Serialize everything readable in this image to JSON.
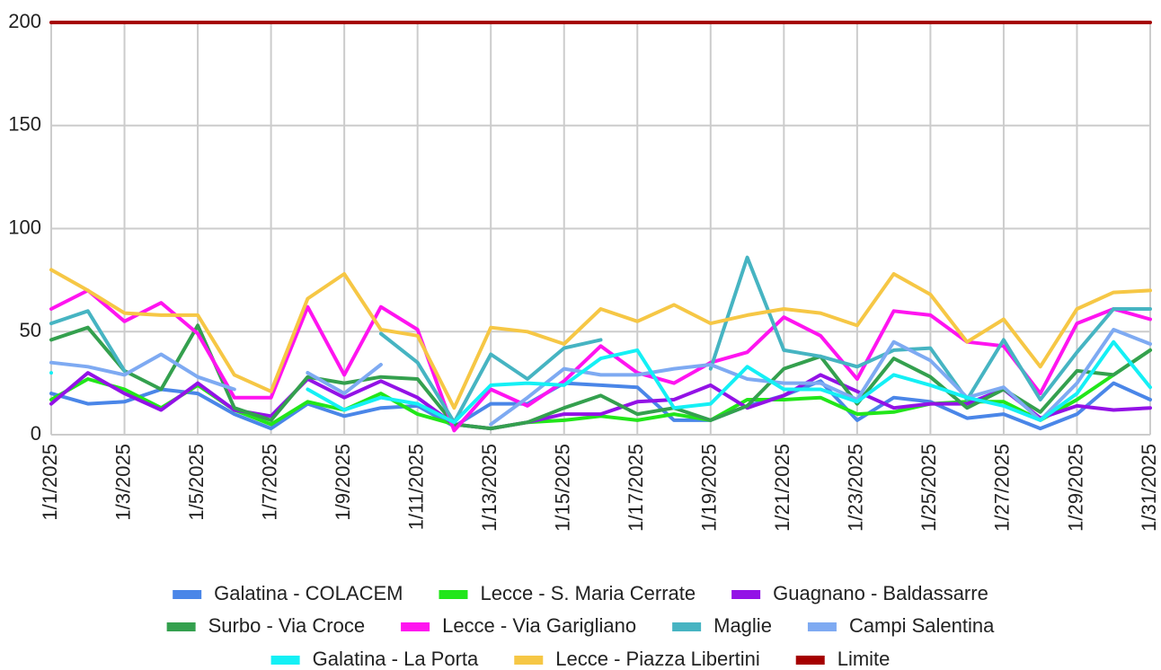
{
  "chart_data": {
    "type": "line",
    "categories": [
      "1/1/2025",
      null,
      "1/3/2025",
      null,
      "1/5/2025",
      null,
      "1/7/2025",
      null,
      "1/9/2025",
      null,
      "1/11/2025",
      null,
      "1/13/2025",
      null,
      "1/15/2025",
      null,
      "1/17/2025",
      null,
      "1/19/2025",
      null,
      "1/21/2025",
      null,
      "1/23/2025",
      null,
      "1/25/2025",
      null,
      "1/27/2025",
      null,
      "1/29/2025",
      null,
      "1/31/2025"
    ],
    "series": [
      {
        "name": "Galatina - COLACEM",
        "color": "#4a86e8",
        "values": [
          20,
          15,
          16,
          22,
          20,
          10,
          3,
          15,
          9,
          13,
          14,
          4,
          15,
          15,
          25,
          24,
          23,
          7,
          7,
          14,
          19,
          26,
          7,
          18,
          16,
          8,
          10,
          3,
          10,
          25,
          17
        ]
      },
      {
        "name": "Lecce - S. Maria Cerrate",
        "color": "#22e61a",
        "values": [
          17,
          27,
          22,
          13,
          24,
          12,
          5,
          16,
          12,
          20,
          10,
          5,
          3,
          6,
          7,
          9,
          7,
          10,
          7,
          17,
          17,
          18,
          10,
          11,
          15,
          16,
          16,
          7,
          17,
          29,
          41
        ]
      },
      {
        "name": "Guagnano - Baldassarre",
        "color": "#9312e6",
        "values": [
          15,
          30,
          20,
          12,
          25,
          12,
          9,
          27,
          18,
          26,
          18,
          5,
          3,
          6,
          10,
          10,
          16,
          17,
          24,
          13,
          19,
          29,
          21,
          13,
          15,
          15,
          22,
          8,
          14,
          12,
          13
        ]
      },
      {
        "name": "Surbo - Via Croce",
        "color": "#34a04e",
        "values": [
          46,
          52,
          31,
          22,
          53,
          13,
          7,
          28,
          25,
          28,
          27,
          5,
          3,
          6,
          13,
          19,
          10,
          13,
          7,
          14,
          32,
          38,
          15,
          37,
          28,
          13,
          22,
          11,
          31,
          29,
          41
        ]
      },
      {
        "name": "Lecce - Via Garigliano",
        "color": "#ff14f0",
        "values": [
          61,
          70,
          55,
          64,
          49,
          18,
          18,
          62,
          29,
          62,
          51,
          2,
          22,
          14,
          26,
          43,
          30,
          25,
          35,
          40,
          57,
          48,
          27,
          60,
          58,
          45,
          43,
          20,
          54,
          61,
          56
        ]
      },
      {
        "name": "Maglie",
        "color": "#46b4c2",
        "values": [
          54,
          60,
          31,
          null,
          null,
          null,
          null,
          30,
          null,
          49,
          35,
          6,
          39,
          27,
          42,
          46,
          null,
          null,
          32,
          86,
          41,
          38,
          33,
          41,
          42,
          17,
          46,
          17,
          40,
          61,
          61
        ]
      },
      {
        "name": "Campi Salentina",
        "color": "#7eaaf2",
        "values": [
          35,
          33,
          29,
          39,
          28,
          22,
          null,
          30,
          20,
          34,
          null,
          null,
          5,
          18,
          32,
          29,
          29,
          32,
          34,
          27,
          25,
          25,
          17,
          45,
          36,
          18,
          23,
          7,
          25,
          51,
          44
        ]
      },
      {
        "name": "Galatina - La Porta",
        "color": "#14f0f5",
        "values": [
          30,
          null,
          null,
          null,
          null,
          null,
          null,
          22,
          12,
          18,
          15,
          6,
          24,
          25,
          24,
          37,
          41,
          13,
          15,
          33,
          22,
          22,
          16,
          29,
          24,
          18,
          14,
          7,
          20,
          45,
          23
        ]
      },
      {
        "name": "Lecce - Piazza Libertini",
        "color": "#f6c745",
        "values": [
          80,
          70,
          59,
          58,
          58,
          29,
          21,
          66,
          78,
          51,
          48,
          13,
          52,
          50,
          44,
          61,
          55,
          63,
          54,
          58,
          61,
          59,
          53,
          78,
          68,
          45,
          56,
          33,
          61,
          69,
          70
        ]
      },
      {
        "name": "Limite",
        "color": "#a50000",
        "values": [
          200,
          200,
          200,
          200,
          200,
          200,
          200,
          200,
          200,
          200,
          200,
          200,
          200,
          200,
          200,
          200,
          200,
          200,
          200,
          200,
          200,
          200,
          200,
          200,
          200,
          200,
          200,
          200,
          200,
          200,
          200
        ]
      }
    ],
    "ylim": [
      0,
      200
    ],
    "yticks": [
      0,
      50,
      100,
      150,
      200
    ],
    "grid": true
  }
}
